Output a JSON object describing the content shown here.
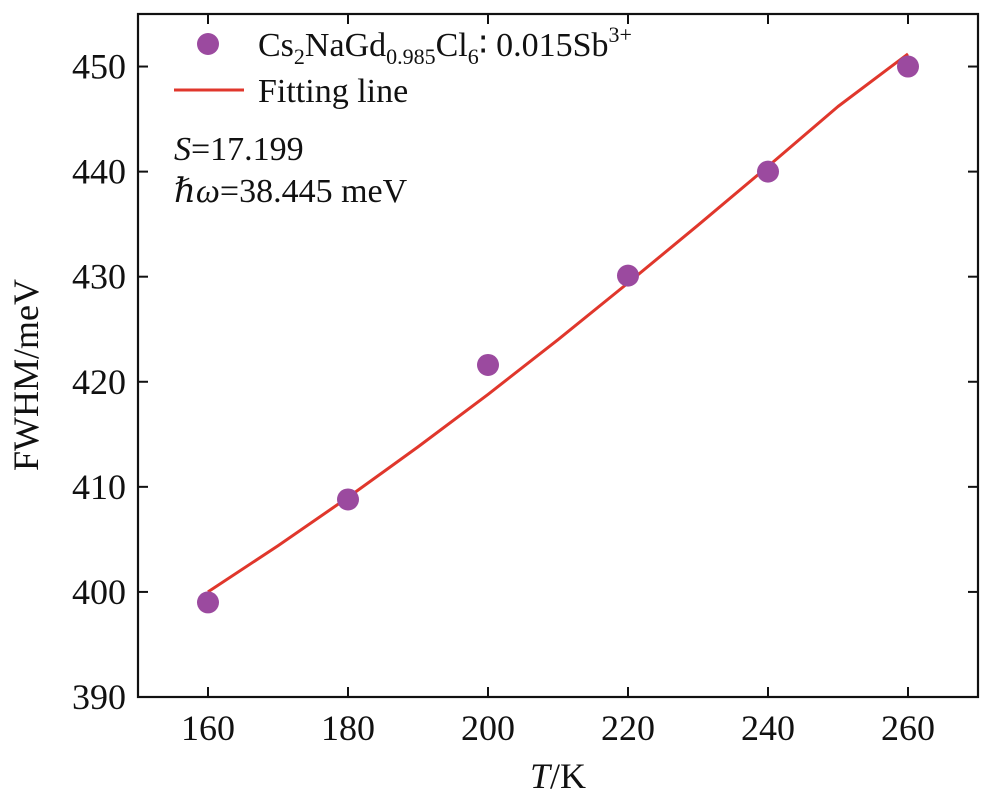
{
  "chart_data": {
    "type": "scatter",
    "xlabel": {
      "italic": "T",
      "rest": "/K"
    },
    "ylabel": "FWHM/meV",
    "xlim": [
      150,
      270
    ],
    "ylim": [
      390,
      455
    ],
    "xticks": [
      160,
      180,
      200,
      220,
      240,
      260
    ],
    "yticks": [
      390,
      400,
      410,
      420,
      430,
      440,
      450
    ],
    "series": [
      {
        "name": "Cs2NaGd0.985Cl6:0.015Sb3+",
        "kind": "scatter",
        "color": "#9b4a9f",
        "x": [
          160,
          180,
          200,
          220,
          240,
          260
        ],
        "y": [
          399,
          408.8,
          421.6,
          430.1,
          440,
          450
        ]
      },
      {
        "name": "Fitting line",
        "kind": "line",
        "color": "#e0372c",
        "x": [
          160,
          170,
          180,
          190,
          200,
          210,
          220,
          230,
          240,
          250,
          260
        ],
        "y": [
          400.0,
          404.4,
          409.0,
          413.8,
          418.8,
          424.0,
          429.4,
          434.9,
          440.5,
          446.2,
          451.2
        ]
      }
    ],
    "legend": {
      "position": "top-left",
      "entries": [
        {
          "formula_parts": [
            "Cs",
            "2",
            "NaGd",
            "0.985",
            "Cl",
            "6",
            "∶ 0.015Sb",
            "3+"
          ]
        },
        {
          "label": "Fitting line"
        }
      ]
    },
    "annotations": {
      "s_label": "S",
      "s_value": "=17.199",
      "hw_label": "ℏω",
      "hw_value": "=38.445 meV"
    }
  }
}
